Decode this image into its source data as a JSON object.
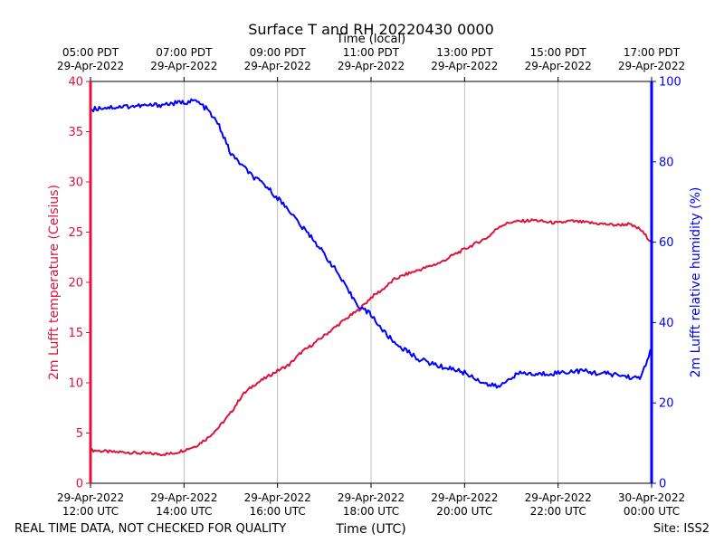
{
  "chart_data": {
    "type": "line",
    "title": "Surface T and RH 20220430 0000",
    "xlabel_bottom": "Time (UTC)",
    "xlabel_top": "Time (local)",
    "ylabel_left": "2m Lufft temperature (Celsius)",
    "ylabel_right": "2m Lufft relative humidity (%)",
    "footer_left": "REAL TIME DATA, NOT CHECKED FOR QUALITY",
    "footer_right": "Site: ISS2",
    "x_range_hours_utc": [
      12,
      24
    ],
    "ylim_left": [
      0,
      40
    ],
    "ylim_right": [
      0,
      100
    ],
    "left_ticks": [
      0,
      5,
      10,
      15,
      20,
      25,
      30,
      35,
      40
    ],
    "right_ticks": [
      0,
      20,
      40,
      60,
      80,
      100
    ],
    "bottom_ticks": [
      {
        "hour": 12,
        "date": "29-Apr-2022",
        "time": "12:00 UTC"
      },
      {
        "hour": 14,
        "date": "29-Apr-2022",
        "time": "14:00 UTC"
      },
      {
        "hour": 16,
        "date": "29-Apr-2022",
        "time": "16:00 UTC"
      },
      {
        "hour": 18,
        "date": "29-Apr-2022",
        "time": "18:00 UTC"
      },
      {
        "hour": 20,
        "date": "29-Apr-2022",
        "time": "20:00 UTC"
      },
      {
        "hour": 22,
        "date": "29-Apr-2022",
        "time": "22:00 UTC"
      },
      {
        "hour": 24,
        "date": "30-Apr-2022",
        "time": "00:00 UTC"
      }
    ],
    "top_ticks": [
      {
        "hour": 12,
        "time": "05:00 PDT",
        "date": "29-Apr-2022"
      },
      {
        "hour": 14,
        "time": "07:00 PDT",
        "date": "29-Apr-2022"
      },
      {
        "hour": 16,
        "time": "09:00 PDT",
        "date": "29-Apr-2022"
      },
      {
        "hour": 18,
        "time": "11:00 PDT",
        "date": "29-Apr-2022"
      },
      {
        "hour": 20,
        "time": "13:00 PDT",
        "date": "29-Apr-2022"
      },
      {
        "hour": 22,
        "time": "15:00 PDT",
        "date": "29-Apr-2022"
      },
      {
        "hour": 24,
        "time": "17:00 PDT",
        "date": "29-Apr-2022"
      }
    ],
    "series": [
      {
        "name": "2m Lufft temperature",
        "axis": "left",
        "color": "#dc143c",
        "x": [
          12.0,
          12.25,
          12.5,
          12.75,
          13.0,
          13.25,
          13.5,
          13.75,
          14.0,
          14.25,
          14.5,
          14.75,
          15.0,
          15.25,
          15.5,
          15.75,
          16.0,
          16.25,
          16.5,
          16.75,
          17.0,
          17.25,
          17.5,
          17.75,
          18.0,
          18.25,
          18.5,
          18.75,
          19.0,
          19.25,
          19.5,
          19.75,
          20.0,
          20.25,
          20.5,
          20.75,
          21.0,
          21.25,
          21.5,
          21.75,
          22.0,
          22.25,
          22.5,
          22.75,
          23.0,
          23.25,
          23.5,
          23.75,
          24.0
        ],
        "values": [
          3.3,
          3.2,
          3.1,
          3.1,
          3.0,
          2.95,
          2.9,
          2.95,
          3.3,
          3.7,
          4.5,
          5.6,
          7.0,
          8.8,
          9.8,
          10.5,
          11.2,
          11.8,
          13.0,
          13.8,
          14.7,
          15.6,
          16.5,
          17.3,
          18.5,
          19.3,
          20.3,
          20.8,
          21.2,
          21.6,
          22.0,
          22.7,
          23.3,
          23.9,
          24.5,
          25.6,
          26.0,
          26.1,
          26.2,
          26.0,
          25.9,
          26.1,
          26.0,
          25.9,
          25.8,
          25.7,
          25.8,
          25.3,
          24.0
        ]
      },
      {
        "name": "2m Lufft relative humidity",
        "axis": "right",
        "color": "#0000ff",
        "x": [
          12.0,
          12.25,
          12.5,
          12.75,
          13.0,
          13.25,
          13.5,
          13.75,
          14.0,
          14.25,
          14.5,
          14.75,
          15.0,
          15.25,
          15.5,
          15.75,
          16.0,
          16.25,
          16.5,
          16.75,
          17.0,
          17.25,
          17.5,
          17.75,
          18.0,
          18.25,
          18.5,
          18.75,
          19.0,
          19.25,
          19.5,
          19.75,
          20.0,
          20.25,
          20.5,
          20.75,
          21.0,
          21.25,
          21.5,
          21.75,
          22.0,
          22.25,
          22.5,
          22.75,
          23.0,
          23.25,
          23.5,
          23.75,
          24.0
        ],
        "values": [
          93.0,
          93.5,
          93.6,
          93.8,
          93.9,
          94.0,
          94.2,
          94.5,
          94.8,
          95.2,
          93.0,
          89.0,
          82.0,
          79.0,
          76.0,
          74.0,
          71.0,
          68.0,
          64.0,
          61.0,
          57.0,
          53.0,
          48.0,
          44.0,
          42.0,
          38.0,
          35.0,
          33.0,
          31.0,
          30.0,
          29.0,
          28.5,
          27.5,
          26.0,
          24.5,
          24.0,
          26.5,
          27.5,
          27.0,
          27.3,
          27.5,
          27.8,
          28.0,
          27.5,
          27.3,
          27.0,
          26.5,
          26.0,
          33.5
        ]
      }
    ]
  }
}
